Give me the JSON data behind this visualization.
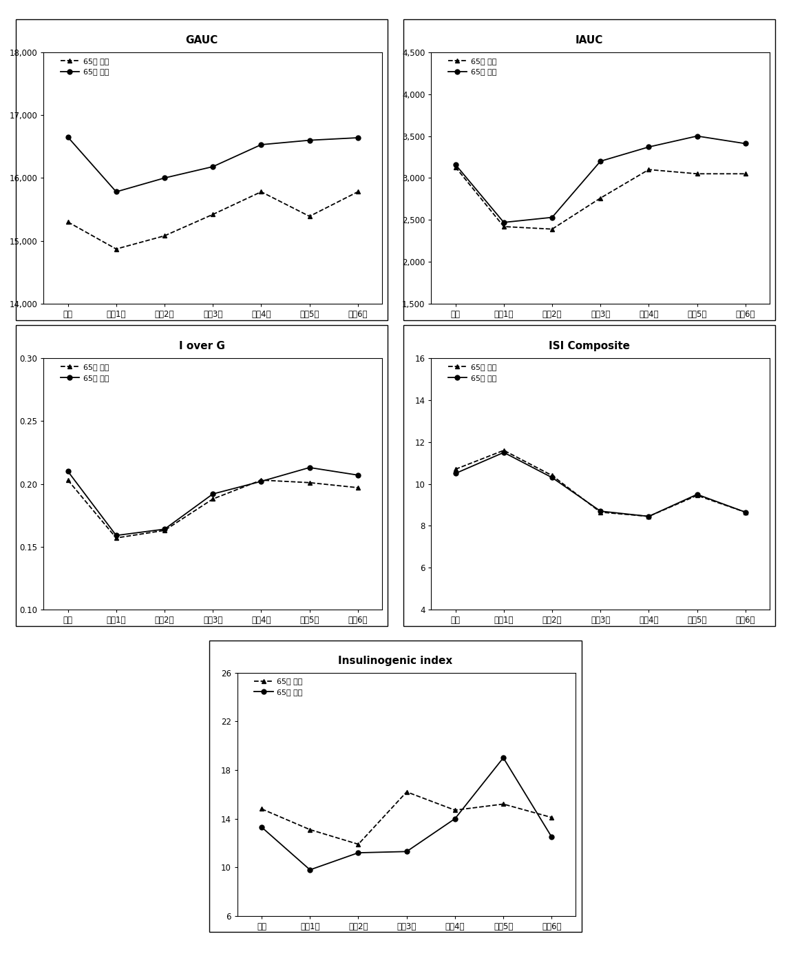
{
  "x_labels": [
    "기초",
    "추적1기",
    "추적2기",
    "추적3기",
    "추적4기",
    "추적5기",
    "추적6기"
  ],
  "charts": {
    "GAUC": {
      "title": "GAUC",
      "ylim": [
        14000,
        18000
      ],
      "yticks": [
        14000,
        15000,
        16000,
        17000,
        18000
      ],
      "ytick_labels": [
        "14,000",
        "15,000",
        "16,000",
        "17,000",
        "18,000"
      ],
      "series_under65": [
        15300,
        14870,
        15080,
        15420,
        15780,
        15390,
        15780
      ],
      "series_over65": [
        16650,
        15780,
        16000,
        16180,
        16530,
        16600,
        16640
      ]
    },
    "IAUC": {
      "title": "IAUC",
      "ylim": [
        1500,
        4500
      ],
      "yticks": [
        1500,
        2000,
        2500,
        3000,
        3500,
        4000,
        4500
      ],
      "ytick_labels": [
        "1,500",
        "2,000",
        "2,500",
        "3,000",
        "3,500",
        "4,000",
        "4,500"
      ],
      "series_under65": [
        3130,
        2420,
        2390,
        2760,
        3100,
        3050,
        3050
      ],
      "series_over65": [
        3160,
        2470,
        2530,
        3200,
        3370,
        3500,
        3410
      ]
    },
    "IoverG": {
      "title": "I over G",
      "ylim": [
        0.1,
        0.3
      ],
      "yticks": [
        0.1,
        0.15,
        0.2,
        0.25,
        0.3
      ],
      "ytick_labels": [
        "0.10",
        "0.15",
        "0.20",
        "0.25",
        "0.30"
      ],
      "series_under65": [
        0.203,
        0.157,
        0.163,
        0.188,
        0.203,
        0.201,
        0.197
      ],
      "series_over65": [
        0.21,
        0.159,
        0.164,
        0.192,
        0.202,
        0.213,
        0.207
      ]
    },
    "ISI": {
      "title": "ISI Composite",
      "ylim": [
        4,
        16
      ],
      "yticks": [
        4,
        6,
        8,
        10,
        12,
        14,
        16
      ],
      "ytick_labels": [
        "4",
        "6",
        "8",
        "10",
        "12",
        "14",
        "16"
      ],
      "series_under65": [
        10.7,
        11.6,
        10.4,
        8.65,
        8.45,
        9.45,
        8.65
      ],
      "series_over65": [
        10.5,
        11.5,
        10.3,
        8.7,
        8.45,
        9.5,
        8.65
      ]
    },
    "Insulinogenic": {
      "title": "Insulinogenic index",
      "ylim": [
        6,
        26
      ],
      "yticks": [
        6,
        10,
        14,
        18,
        22,
        26
      ],
      "ytick_labels": [
        "6",
        "10",
        "14",
        "18",
        "22",
        "26"
      ],
      "series_under65": [
        14.8,
        13.1,
        11.9,
        16.2,
        14.7,
        15.2,
        14.1
      ],
      "series_over65": [
        13.3,
        9.8,
        11.2,
        11.3,
        14.0,
        19.0,
        12.5
      ]
    }
  },
  "legend_under65": "65세 미만",
  "legend_over65": "65세 이상",
  "line_color": "#000000",
  "marker_under65": "^",
  "marker_over65": "o",
  "linestyle_under65": "--",
  "linestyle_over65": "-",
  "markersize": 5,
  "linewidth": 1.3,
  "tick_fontsize": 8.5,
  "title_fontsize": 11,
  "legend_fontsize": 8,
  "bg_color": "#ffffff"
}
